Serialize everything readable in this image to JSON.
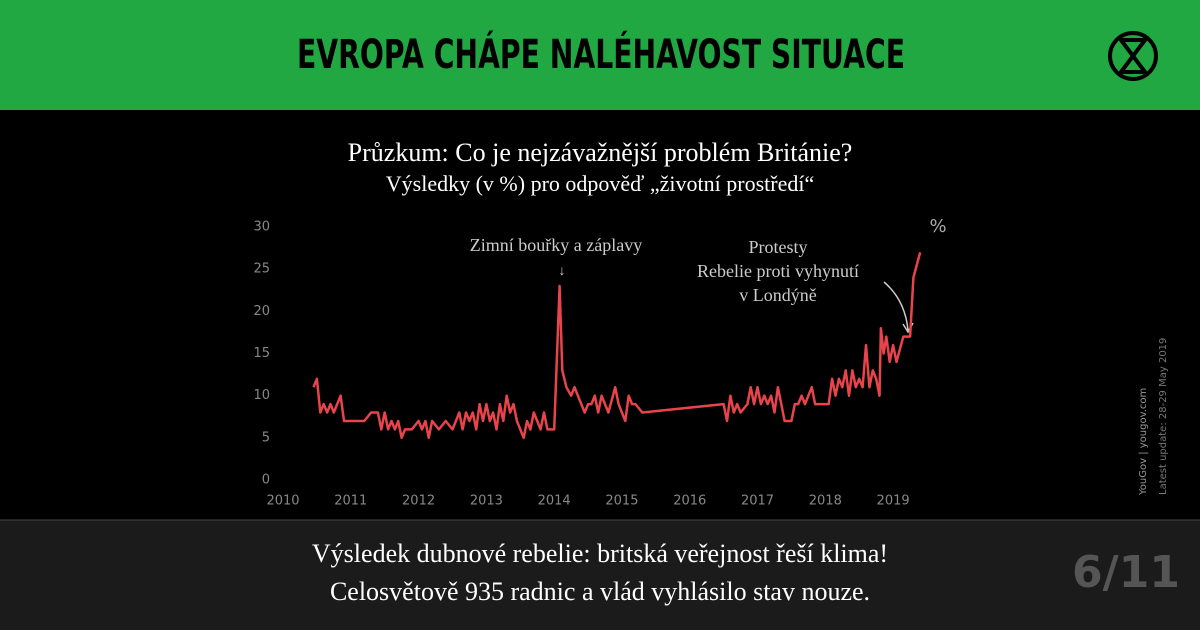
{
  "header": {
    "title": "EVROPA CHÁPE NALÉHAVOST SITUACE"
  },
  "chart_data": {
    "type": "line",
    "title": "Průzkum: Co je nejzávažnější problém Británie?",
    "subtitle": "Výsledky (v %) pro odpověď „životní prostředí“",
    "y_unit": "%",
    "annotations": [
      "Zimní bouřky a záplavy",
      "Protesty",
      "Rebelie proti vyhynutí",
      "v Londýně"
    ],
    "x": [
      2010.45,
      2010.5,
      2010.55,
      2010.6,
      2010.65,
      2010.7,
      2010.75,
      2010.8,
      2010.85,
      2010.9,
      2011.0,
      2011.1,
      2011.2,
      2011.3,
      2011.4,
      2011.45,
      2011.5,
      2011.55,
      2011.6,
      2011.65,
      2011.7,
      2011.75,
      2011.8,
      2011.9,
      2012.0,
      2012.05,
      2012.1,
      2012.15,
      2012.2,
      2012.3,
      2012.4,
      2012.5,
      2012.55,
      2012.6,
      2012.65,
      2012.7,
      2012.75,
      2012.8,
      2012.85,
      2012.9,
      2012.95,
      2013.0,
      2013.05,
      2013.1,
      2013.15,
      2013.2,
      2013.25,
      2013.3,
      2013.35,
      2013.4,
      2013.45,
      2013.5,
      2013.55,
      2013.6,
      2013.65,
      2013.7,
      2013.75,
      2013.8,
      2013.85,
      2013.9,
      2014.0,
      2014.08,
      2014.12,
      2014.18,
      2014.25,
      2014.3,
      2014.35,
      2014.45,
      2014.5,
      2014.55,
      2014.6,
      2014.65,
      2014.7,
      2014.75,
      2014.8,
      2014.9,
      2014.95,
      2015.0,
      2015.05,
      2015.1,
      2015.15,
      2015.2,
      2015.3,
      2016.5,
      2016.55,
      2016.6,
      2016.65,
      2016.7,
      2016.75,
      2016.85,
      2016.9,
      2016.95,
      2017.0,
      2017.05,
      2017.1,
      2017.15,
      2017.2,
      2017.25,
      2017.3,
      2017.35,
      2017.4,
      2017.5,
      2017.55,
      2017.6,
      2017.65,
      2017.7,
      2017.8,
      2017.85,
      2017.95,
      2018.05,
      2018.1,
      2018.15,
      2018.2,
      2018.25,
      2018.3,
      2018.35,
      2018.4,
      2018.45,
      2018.5,
      2018.55,
      2018.6,
      2018.65,
      2018.7,
      2018.75,
      2018.8,
      2018.82,
      2018.86,
      2018.9,
      2018.95,
      2019.0,
      2019.05,
      2019.15,
      2019.25,
      2019.3,
      2019.4
    ],
    "series": [
      {
        "color": "#e8444b",
        "values": [
          11,
          12,
          8,
          9,
          8,
          9,
          8,
          9,
          10,
          7,
          7,
          7,
          7,
          8,
          8,
          6,
          8,
          6,
          7,
          6,
          7,
          5,
          6,
          6,
          7,
          6,
          7,
          5,
          7,
          6,
          7,
          6,
          7,
          8,
          6,
          8,
          7,
          8,
          6,
          9,
          7,
          9,
          7,
          8,
          6,
          9,
          7,
          10,
          8,
          9,
          7,
          6,
          5,
          7,
          6,
          8,
          7,
          6,
          8,
          6,
          6,
          23,
          13,
          11,
          10,
          11,
          10,
          8,
          9,
          9,
          10,
          8,
          10,
          9,
          8,
          11,
          9,
          8,
          7,
          10,
          9,
          9,
          8,
          9,
          7,
          10,
          8,
          9,
          8,
          9,
          11,
          9,
          11,
          9,
          10,
          9,
          10,
          8,
          11,
          9,
          7,
          7,
          9,
          9,
          10,
          9,
          11,
          9,
          9,
          9,
          12,
          10,
          12,
          11,
          13,
          10,
          13,
          11,
          12,
          11,
          16,
          11,
          13,
          12,
          10,
          18,
          15,
          17,
          14,
          16,
          14,
          17,
          17,
          24,
          27
        ]
      }
    ],
    "xlim": [
      2010,
      2019.5
    ],
    "ylim": [
      0,
      30
    ],
    "xticks": [
      2010,
      2011,
      2012,
      2013,
      2014,
      2015,
      2016,
      2017,
      2018,
      2019
    ],
    "yticks": [
      0,
      5,
      10,
      15,
      20,
      25,
      30
    ]
  },
  "source": [
    "YouGov | yougov.com",
    "Latest update: 28-29 May 2019"
  ],
  "footer": {
    "lines": [
      "Výsledek dubnové rebelie: britská veřejnost řeší klima!",
      "Celosvětově 935 radnic a vlád vyhlásilo stav nouze."
    ],
    "page": "6/11"
  }
}
